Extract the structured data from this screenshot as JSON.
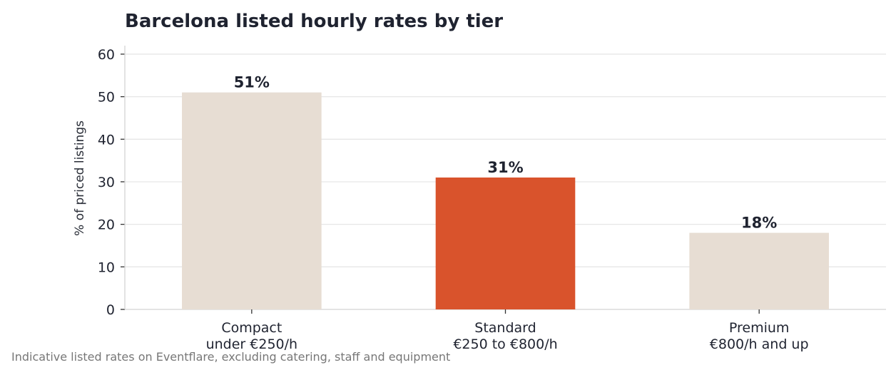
{
  "chart_data": {
    "type": "bar",
    "title": "Barcelona listed hourly rates by tier",
    "ylabel": "% of priced listings",
    "xlabel": "",
    "ylim": [
      0,
      62
    ],
    "yticks": [
      0,
      10,
      20,
      30,
      40,
      50,
      60
    ],
    "categories": [
      [
        "Compact",
        "under €250/h"
      ],
      [
        "Standard",
        "€250 to €800/h"
      ],
      [
        "Premium",
        "€800/h and up"
      ]
    ],
    "values": [
      51,
      31,
      18
    ],
    "data_labels": [
      "51%",
      "31%",
      "18%"
    ],
    "colors": [
      "#e7ddd3",
      "#d9532c",
      "#e7ddd3"
    ],
    "grid": "horizontal",
    "footnote": "Indicative listed rates on Eventflare, excluding catering, staff and equipment"
  }
}
